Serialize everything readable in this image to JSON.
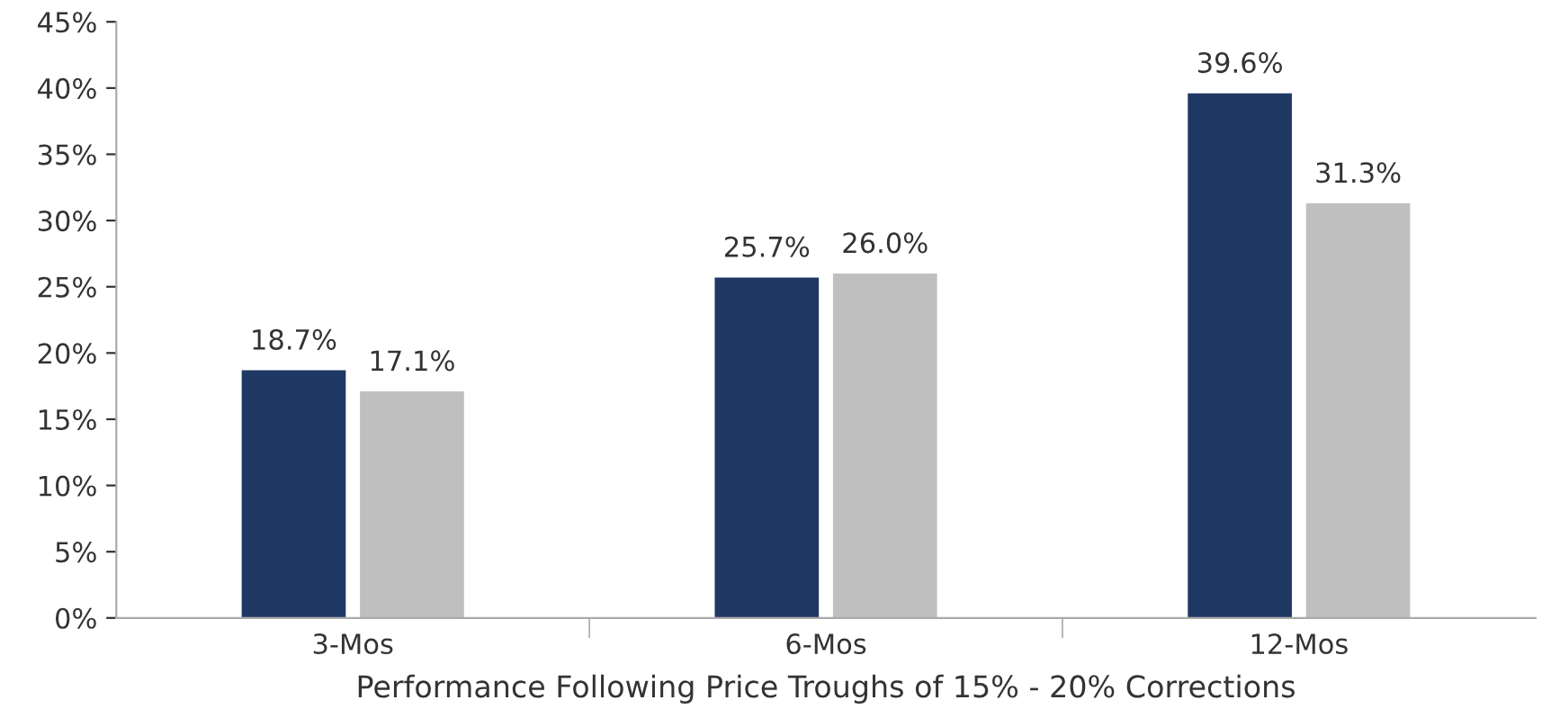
{
  "chart_data": {
    "type": "bar",
    "xlabel": "Performance Following Price Troughs of 15% - 20% Corrections",
    "categories": [
      "3-Mos",
      "6-Mos",
      "12-Mos"
    ],
    "series": [
      {
        "color": "#1f3864",
        "values": [
          18.7,
          25.7,
          39.6
        ],
        "value_labels": [
          "18.7%",
          "25.7%",
          "39.6%"
        ]
      },
      {
        "color": "#bfbfbf",
        "values": [
          17.1,
          26.0,
          31.3
        ],
        "value_labels": [
          "17.1%",
          "26.0%",
          "31.3%"
        ]
      }
    ],
    "ylim": [
      0,
      45
    ],
    "yticks": [
      {
        "value": 0,
        "label": "0%"
      },
      {
        "value": 5,
        "label": "5%"
      },
      {
        "value": 10,
        "label": "10%"
      },
      {
        "value": 15,
        "label": "15%"
      },
      {
        "value": 20,
        "label": "20%"
      },
      {
        "value": 25,
        "label": "25%"
      },
      {
        "value": 30,
        "label": "30%"
      },
      {
        "value": 35,
        "label": "35%"
      },
      {
        "value": 40,
        "label": "40%"
      },
      {
        "value": 45,
        "label": "45%"
      }
    ],
    "grid": false,
    "legend": false
  }
}
